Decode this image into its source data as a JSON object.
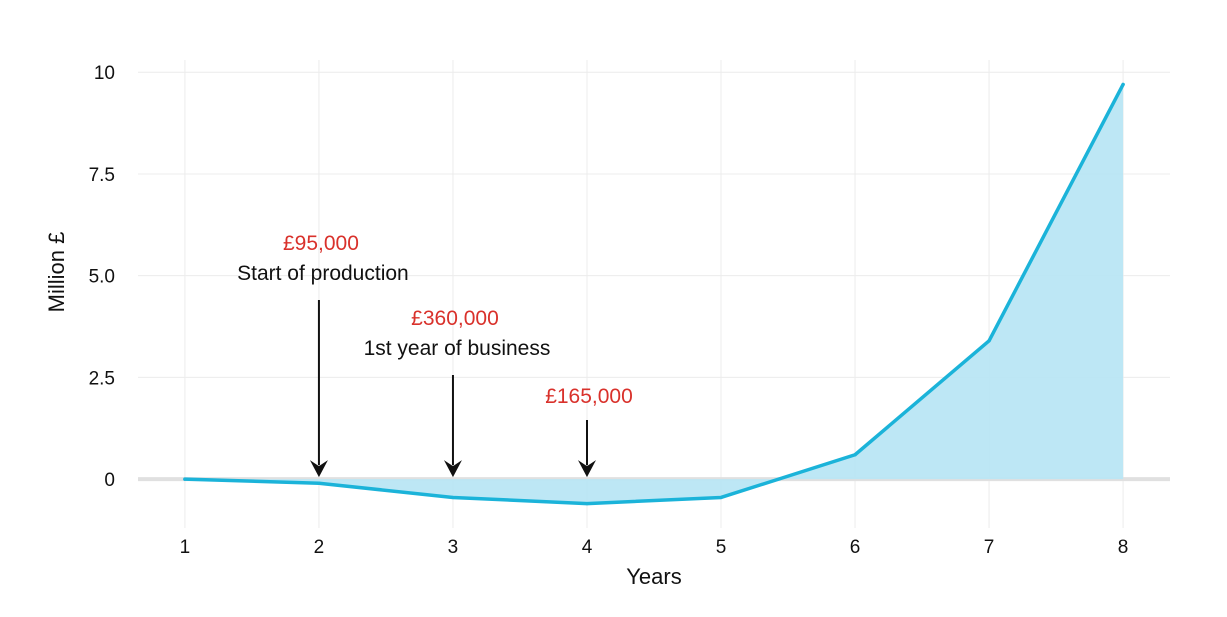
{
  "chart_data": {
    "type": "area",
    "xlabel": "Years",
    "ylabel": "Million £",
    "x": [
      1,
      2,
      3,
      4,
      5,
      6,
      7,
      8
    ],
    "series": [
      {
        "values": [
          0,
          -0.1,
          -0.45,
          -0.6,
          -0.45,
          0.6,
          3.4,
          9.7
        ]
      }
    ],
    "xlim": [
      0.65,
      8.35
    ],
    "ylim": [
      -1.2,
      10.3
    ],
    "xticks": [
      "1",
      "2",
      "3",
      "4",
      "5",
      "6",
      "7",
      "8"
    ],
    "yticks": [
      {
        "value": 0,
        "label": "0"
      },
      {
        "value": 2.5,
        "label": "2.5"
      },
      {
        "value": 5,
        "label": "5.0"
      },
      {
        "value": 7.5,
        "label": "7.5"
      },
      {
        "value": 10,
        "label": "10"
      }
    ],
    "grid": true,
    "annotations": [
      {
        "x": 2,
        "value": "£95,000",
        "label": "Start of production"
      },
      {
        "x": 3,
        "value": "£360,000",
        "label": "1st year of business"
      },
      {
        "x": 4,
        "value": "£165,000",
        "label": ""
      }
    ],
    "colors": {
      "line": "#1bb3d9",
      "fill": "#b9e6f4",
      "annotation_value": "#d9312b",
      "grid": "#ececec",
      "zero_line": "#e0e0e0"
    }
  }
}
